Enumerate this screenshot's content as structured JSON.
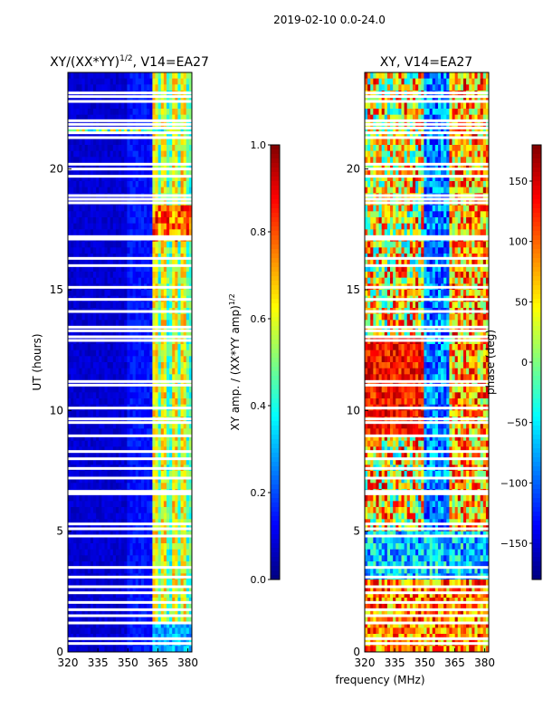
{
  "suptitle": "2019-02-10 0.0-24.0",
  "colors": {
    "jet": [
      "#00007f",
      "#0000ff",
      "#007fff",
      "#00ffff",
      "#7fff7f",
      "#ffff00",
      "#ff7f00",
      "#ff0000",
      "#7f0000"
    ]
  },
  "chart_data": [
    {
      "type": "heatmap",
      "title_main": "XY/(XX*YY)",
      "title_exp": "1/2",
      "title_rest": ", V14=EA27",
      "xlabel": "",
      "ylabel": "UT (hours)",
      "x_range": [
        320,
        382
      ],
      "y_range": [
        0,
        24
      ],
      "x_ticks": [
        "320",
        "335",
        "350",
        "365",
        "380"
      ],
      "x_tick_values": [
        320,
        335,
        350,
        365,
        380
      ],
      "y_ticks": [
        "0",
        "5",
        "10",
        "15",
        "20"
      ],
      "y_tick_values": [
        0,
        5,
        10,
        15,
        20
      ],
      "colorbar": {
        "label_main": "XY amp. / (XX*YY amp)",
        "label_exp": "1/2",
        "range": [
          0.0,
          1.0
        ],
        "ticks": [
          "0.0",
          "0.2",
          "0.4",
          "0.6",
          "0.8",
          "1.0"
        ],
        "tick_values": [
          0.0,
          0.2,
          0.4,
          0.6,
          0.8,
          1.0
        ]
      }
    },
    {
      "type": "heatmap",
      "title": "XY, V14=EA27",
      "xlabel": "frequency (MHz)",
      "ylabel": "",
      "x_range": [
        320,
        382
      ],
      "y_range": [
        0,
        24
      ],
      "x_ticks": [
        "320",
        "335",
        "350",
        "365",
        "380"
      ],
      "x_tick_values": [
        320,
        335,
        350,
        365,
        380
      ],
      "y_ticks": [
        "0",
        "5",
        "10",
        "15",
        "20"
      ],
      "y_tick_values": [
        0,
        5,
        10,
        15,
        20
      ],
      "colorbar": {
        "label": "phase (deg)",
        "range": [
          -180,
          180
        ],
        "ticks": [
          "−150",
          "−100",
          "−50",
          "0",
          "50",
          "100",
          "150"
        ],
        "tick_values": [
          -150,
          -100,
          -50,
          0,
          50,
          100,
          150
        ]
      }
    }
  ],
  "flagged_ut_hours": [
    0.35,
    0.55,
    1.2,
    1.5,
    1.75,
    2.05,
    2.45,
    2.7,
    3.1,
    3.5,
    4.8,
    5.1,
    5.3,
    6.55,
    6.65,
    7.2,
    7.6,
    8.0,
    8.3,
    8.95,
    9.5,
    9.65,
    10.1,
    11.05,
    11.2,
    12.9,
    13.05,
    13.3,
    13.45,
    14.1,
    14.6,
    15.1,
    16.0,
    16.3,
    17.1,
    17.2,
    18.6,
    18.75,
    18.9,
    19.7,
    20.0,
    20.2,
    21.3,
    21.5,
    21.7,
    21.85,
    22.0,
    22.8,
    23.0,
    23.15
  ]
}
